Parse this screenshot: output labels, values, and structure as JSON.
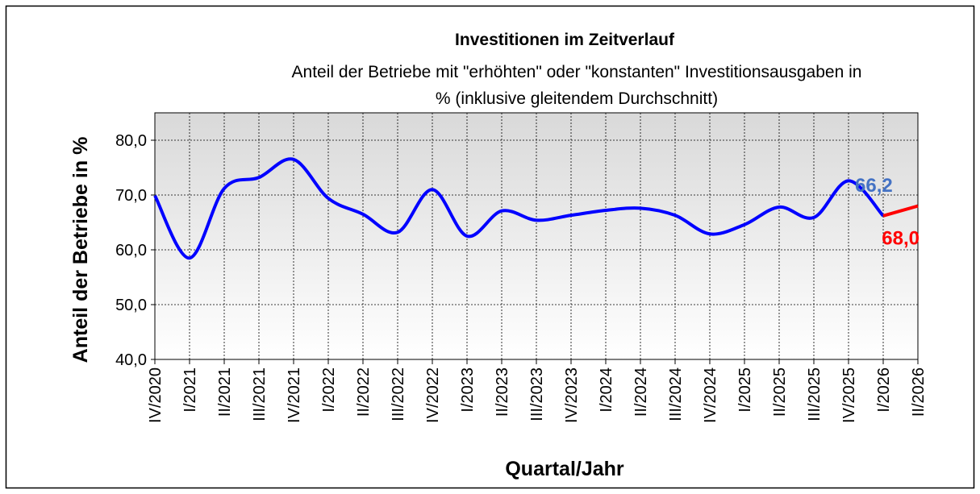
{
  "chart_data": {
    "type": "line",
    "title": "Investitionen im Zeitverlauf",
    "subtitle": [
      "Anteil der Betriebe mit \"erhöhten\" oder \"konstanten\" Investitionsausgaben in",
      "% (inklusive gleitendem Durchschnitt)"
    ],
    "x_label": "Quartal/Jahr",
    "y_label": "Anteil der Betriebe in %",
    "categories": [
      "IV/2020",
      "I/2021",
      "II/2021",
      "III/2021",
      "IV/2021",
      "I/2022",
      "II/2022",
      "III/2022",
      "IV/2022",
      "I/2023",
      "II/2023",
      "III/2023",
      "IV/2023",
      "I/2024",
      "II/2024",
      "III/2024",
      "IV/2024",
      "I/2025",
      "II/2025",
      "III/2025",
      "IV/2025",
      "I/2026",
      "II/2026"
    ],
    "series": [
      {
        "color": "#0000ff",
        "values": [
          69.9,
          58.5,
          71.2,
          73.2,
          76.5,
          69.4,
          66.5,
          63.2,
          71.0,
          62.5,
          67.1,
          65.4,
          66.3,
          67.2,
          67.6,
          66.3,
          62.9,
          64.6,
          67.8,
          65.9,
          72.6,
          66.2,
          null
        ],
        "value_labels": [
          null,
          null,
          null,
          null,
          null,
          null,
          null,
          null,
          null,
          null,
          null,
          null,
          null,
          null,
          null,
          null,
          null,
          null,
          null,
          null,
          null,
          "66,2",
          null
        ],
        "label_color": "#4472c4"
      },
      {
        "color": "#ff0000",
        "values": [
          null,
          null,
          null,
          null,
          null,
          null,
          null,
          null,
          null,
          null,
          null,
          null,
          null,
          null,
          null,
          null,
          null,
          null,
          null,
          null,
          null,
          66.2,
          68.0
        ],
        "value_labels": [
          null,
          null,
          null,
          null,
          null,
          null,
          null,
          null,
          null,
          null,
          null,
          null,
          null,
          null,
          null,
          null,
          null,
          null,
          null,
          null,
          null,
          null,
          "68,0"
        ],
        "label_color": "#ff0000"
      }
    ],
    "ylim": [
      40,
      85
    ],
    "yticks": [
      {
        "value": 40,
        "label": "40,0"
      },
      {
        "value": 50,
        "label": "50,0"
      },
      {
        "value": 60,
        "label": "60,0"
      },
      {
        "value": 70,
        "label": "70,0"
      },
      {
        "value": 80,
        "label": "80,0"
      }
    ],
    "grid": true,
    "smooth": true
  }
}
